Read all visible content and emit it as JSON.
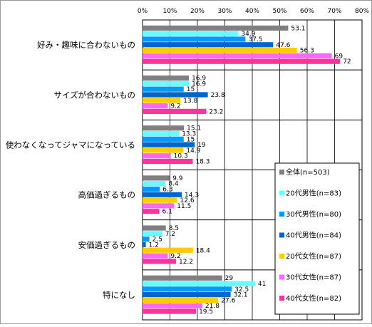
{
  "chart_data": {
    "type": "bar",
    "orientation": "horizontal",
    "title": "",
    "xlabel": "",
    "ylabel": "",
    "xlim": [
      0,
      80
    ],
    "x_ticks": [
      "0%",
      "10%",
      "20%",
      "30%",
      "40%",
      "50%",
      "60%",
      "70%",
      "80%"
    ],
    "grid": true,
    "legend_position": "bottom-right",
    "categories": [
      "好み・趣味に合わないもの",
      "サイズが合わないもの",
      "使わなくなってジャマになっている",
      "高価過ぎるもの",
      "安価過ぎるもの",
      "特になし"
    ],
    "series": [
      {
        "name": "全体(n=503)",
        "color": "#808080",
        "values": [
          53.1,
          16.9,
          15.1,
          9.9,
          8.5,
          29.0
        ]
      },
      {
        "name": "20代男性(n=83)",
        "color": "#66FFFF",
        "values": [
          34.9,
          16.9,
          13.3,
          8.4,
          7.2,
          41.0
        ]
      },
      {
        "name": "30代男性(n=80)",
        "color": "#0099FF",
        "values": [
          37.5,
          15.0,
          15.0,
          6.3,
          2.5,
          32.5
        ]
      },
      {
        "name": "40代男性(n=84)",
        "color": "#0066CC",
        "values": [
          47.6,
          23.8,
          19.0,
          14.3,
          1.2,
          32.1
        ]
      },
      {
        "name": "20代女性(n=87)",
        "color": "#FFCC00",
        "values": [
          56.3,
          13.8,
          14.9,
          12.6,
          18.4,
          27.6
        ]
      },
      {
        "name": "30代女性(n=87)",
        "color": "#FF66FF",
        "values": [
          69.0,
          9.2,
          10.3,
          11.5,
          9.2,
          21.8
        ]
      },
      {
        "name": "40代女性(n=82)",
        "color": "#FF3399",
        "values": [
          72.0,
          23.2,
          18.3,
          6.1,
          12.2,
          19.5
        ]
      }
    ]
  }
}
